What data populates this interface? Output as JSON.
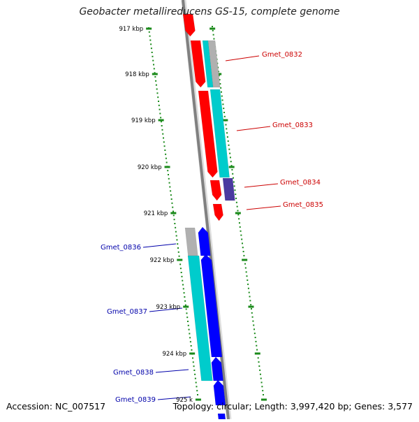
{
  "title": "Geobacter metallireducens GS-15, complete genome",
  "accession": "Accession: NC_007517",
  "topology": "Topology: circular; Length: 3,997,420 bp; Genes: 3,577",
  "scale_labels": [
    "917 kbp",
    "918 kbp",
    "919 kbp",
    "920 kbp",
    "921 kbp",
    "922 kbp",
    "923 kbp",
    "924 kbp",
    "925 k"
  ],
  "genes_forward": [
    {
      "name": "Gmet_0832",
      "color": "#cc0000"
    },
    {
      "name": "Gmet_0833",
      "color": "#cc0000"
    },
    {
      "name": "Gmet_0834",
      "color": "#cc0000"
    },
    {
      "name": "Gmet_0835",
      "color": "#cc0000"
    }
  ],
  "genes_reverse": [
    {
      "name": "Gmet_0836",
      "color": "#0000aa"
    },
    {
      "name": "Gmet_0837",
      "color": "#0000aa"
    },
    {
      "name": "Gmet_0838",
      "color": "#0000aa"
    },
    {
      "name": "Gmet_0839",
      "color": "#0000aa"
    }
  ],
  "colors": {
    "cds": "#ff0000",
    "gene_reverse": "#0000ff",
    "feature": "#00cccc",
    "pseudo": "#b0b0b0",
    "rna": "#4a3aa0",
    "backbone": "#808080",
    "ticks": "#1a8a1a"
  }
}
